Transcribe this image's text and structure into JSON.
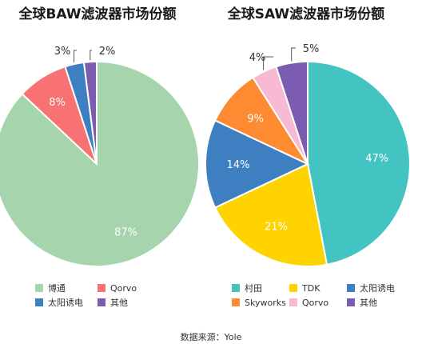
{
  "source": "数据来源：Yole",
  "chart_data": [
    {
      "type": "pie",
      "title": "全球BAW滤波器市场份额",
      "slices": [
        {
          "name": "博通",
          "value": 87,
          "label": "87%",
          "color": "#A6D4AC"
        },
        {
          "name": "Qorvo",
          "value": 8,
          "label": "8%",
          "color": "#F87173"
        },
        {
          "name": "太阳诱电",
          "value": 3,
          "label": "3%",
          "color": "#3E7FC1"
        },
        {
          "name": "其他",
          "value": 2,
          "label": "2%",
          "color": "#7B5CB1"
        }
      ],
      "legend_position": "bottom"
    },
    {
      "type": "pie",
      "title": "全球SAW滤波器市场份额",
      "slices": [
        {
          "name": "村田",
          "value": 47,
          "label": "47%",
          "color": "#43C3C2"
        },
        {
          "name": "TDK",
          "value": 21,
          "label": "21%",
          "color": "#FFD300"
        },
        {
          "name": "太阳诱电",
          "value": 14,
          "label": "14%",
          "color": "#3E7FC1"
        },
        {
          "name": "Skyworks",
          "value": 9,
          "label": "9%",
          "color": "#FE8A31"
        },
        {
          "name": "Qorvo",
          "value": 4,
          "label": "4%",
          "color": "#F7B9D4"
        },
        {
          "name": "其他",
          "value": 5,
          "label": "5%",
          "color": "#7B5CB1"
        }
      ],
      "legend_position": "bottom"
    }
  ]
}
